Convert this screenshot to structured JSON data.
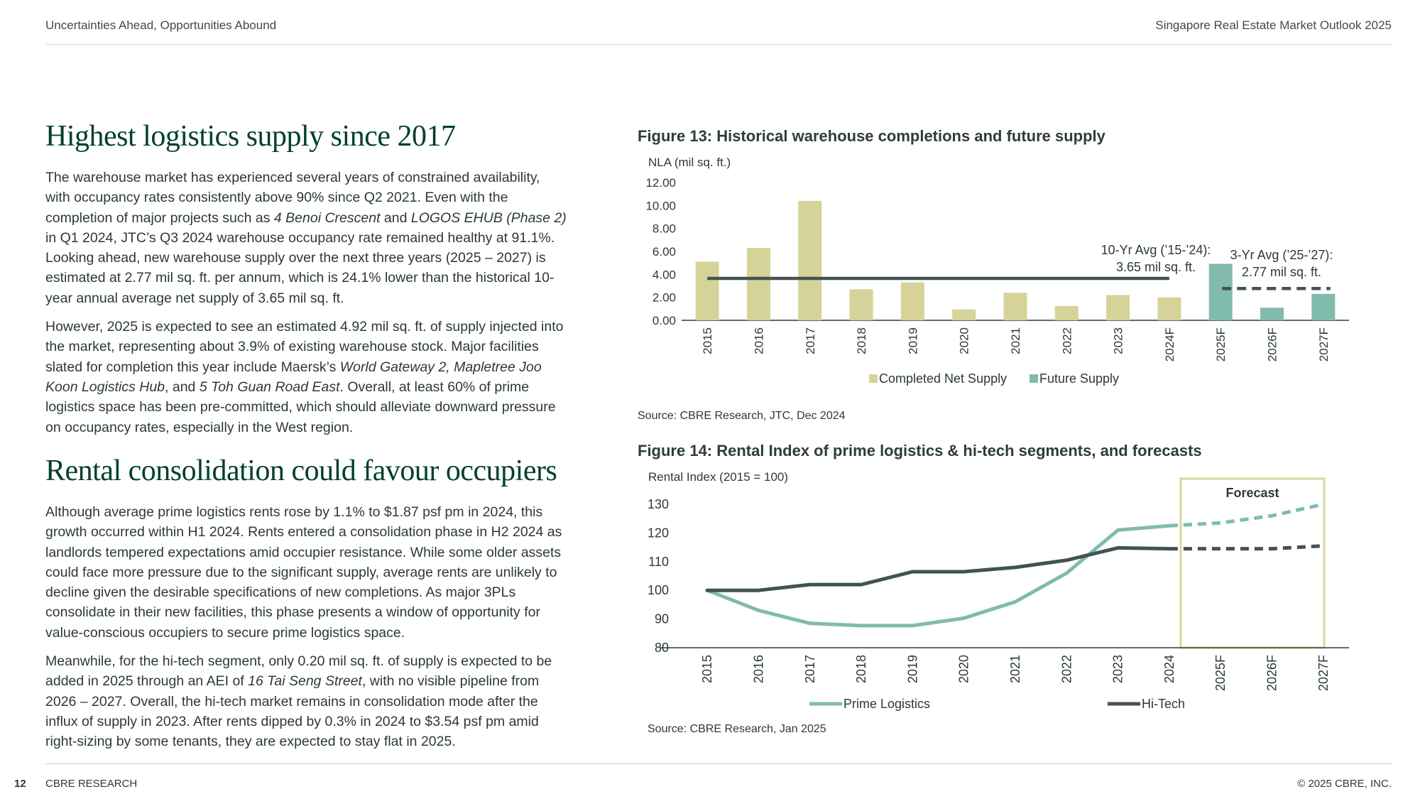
{
  "header": {
    "left": "Uncertainties Ahead, Opportunities Abound",
    "right": "Singapore Real Estate Market Outlook 2025"
  },
  "section1": {
    "heading": "Highest logistics supply since 2017",
    "p1": [
      {
        "t": "The warehouse market has experienced several years of constrained availability, with occupancy rates consistently above 90% since Q2 2021. Even with the completion of major projects such as "
      },
      {
        "t": "4 Benoi Crescent",
        "i": true
      },
      {
        "t": " and "
      },
      {
        "t": "LOGOS EHUB (Phase 2)",
        "i": true
      },
      {
        "t": " in Q1 2024, JTC’s Q3 2024 warehouse occupancy rate remained healthy at 91.1%. Looking ahead, new warehouse supply over the next three years (2025 – 2027) is estimated at 2.77 mil sq. ft. per annum, which is 24.1% lower than the historical 10-year annual average net supply of 3.65 mil sq. ft."
      }
    ],
    "p2": [
      {
        "t": "However, 2025 is expected to see an estimated 4.92 mil sq. ft. of supply injected into the market, representing about 3.9% of existing warehouse stock. Major facilities slated for completion this year include Maersk’s "
      },
      {
        "t": "World Gateway 2, Mapletree Joo Koon Logistics Hub",
        "i": true
      },
      {
        "t": ", and "
      },
      {
        "t": "5 Toh Guan Road East",
        "i": true
      },
      {
        "t": ". Overall, at least 60% of prime logistics space has been pre-committed, which should alleviate downward pressure on occupancy rates, especially in the West region."
      }
    ]
  },
  "section2": {
    "heading": "Rental consolidation could favour occupiers",
    "p1": [
      {
        "t": "Although average prime logistics rents rose by 1.1% to $1.87 psf pm in 2024, this growth occurred within H1 2024. Rents entered a consolidation phase in H2 2024 as landlords tempered expectations amid occupier resistance. While some older assets could face more pressure due to the significant supply, average rents are unlikely to decline given the desirable specifications of new completions. As major 3PLs consolidate in their new facilities, this phase presents a window of opportunity for value-conscious occupiers to secure prime logistics space."
      }
    ],
    "p2": [
      {
        "t": "Meanwhile, for the hi-tech segment, only 0.20 mil sq. ft. of supply is expected to be added in 2025 through an AEI of "
      },
      {
        "t": "16 Tai Seng Street",
        "i": true
      },
      {
        "t": ", with no visible pipeline from 2026 – 2027. Overall, the hi-tech market remains in consolidation mode after the influx of supply in 2023. After rents dipped by 0.3% in 2024 to $3.54 psf pm amid right-sizing by some tenants, they are expected to stay flat in 2025."
      }
    ]
  },
  "fig13": {
    "title": "Figure 13: Historical warehouse completions and future supply",
    "source": "Source: CBRE Research, JTC, Dec 2024",
    "avg10_line1": "10-Yr Avg (’15-’24):",
    "avg10_line2": "3.65 mil sq. ft.",
    "avg3_line1": "3-Yr Avg (’25-’27):",
    "avg3_line2": "2.77 mil sq. ft."
  },
  "fig14": {
    "title": "Figure 14: Rental Index of prime logistics & hi-tech segments, and forecasts",
    "source": "Source: CBRE Research, Jan 2025",
    "forecast_label": "Forecast"
  },
  "chart_data": [
    {
      "type": "bar",
      "ylabel": "NLA (mil sq. ft.)",
      "ylim": [
        0,
        12
      ],
      "yticks": [
        "0.00",
        "2.00",
        "4.00",
        "6.00",
        "8.00",
        "10.00",
        "12.00"
      ],
      "categories": [
        "2015",
        "2016",
        "2017",
        "2018",
        "2019",
        "2020",
        "2021",
        "2022",
        "2023",
        "2024F",
        "2025F",
        "2026F",
        "2027F"
      ],
      "series": [
        {
          "name": "Completed Net Supply",
          "color": "#d5d399",
          "values": [
            5.1,
            6.3,
            10.4,
            2.7,
            3.3,
            0.95,
            2.4,
            1.25,
            2.2,
            2.0,
            null,
            null,
            null
          ]
        },
        {
          "name": "Future Supply",
          "color": "#80bbad",
          "values": [
            null,
            null,
            null,
            null,
            null,
            null,
            null,
            null,
            null,
            null,
            4.92,
            1.1,
            2.3
          ]
        }
      ],
      "reference_lines": [
        {
          "value": 3.65,
          "from": "2015",
          "to": "2024F",
          "style": "solid"
        },
        {
          "value": 2.77,
          "from": "2025F",
          "to": "2027F",
          "style": "dashed"
        }
      ],
      "grid": false,
      "legend": "bottom"
    },
    {
      "type": "line",
      "ylabel": "Rental Index (2015 = 100)",
      "ylim": [
        80,
        130
      ],
      "yticks": [
        "80",
        "90",
        "100",
        "110",
        "120",
        "130"
      ],
      "x": [
        "2015",
        "2016",
        "2017",
        "2018",
        "2019",
        "2020",
        "2021",
        "2022",
        "2023",
        "2024",
        "2025F",
        "2026F",
        "2027F"
      ],
      "series": [
        {
          "name": "Prime Logistics",
          "color": "#80bbad",
          "values": [
            100,
            93,
            88.5,
            87.7,
            87.7,
            90.3,
            96,
            106,
            121,
            122.5,
            123.5,
            126,
            130
          ]
        },
        {
          "name": "Hi-Tech",
          "color": "#435254",
          "values": [
            100,
            100,
            102,
            102,
            106.5,
            106.5,
            108,
            110.5,
            114.8,
            114.5,
            114.5,
            114.5,
            115.5
          ]
        }
      ],
      "forecast_from": "2024",
      "grid": false,
      "legend": "bottom"
    }
  ],
  "footer": {
    "page": "12",
    "brand": "CBRE RESEARCH",
    "copyright": "© 2025 CBRE, INC."
  }
}
